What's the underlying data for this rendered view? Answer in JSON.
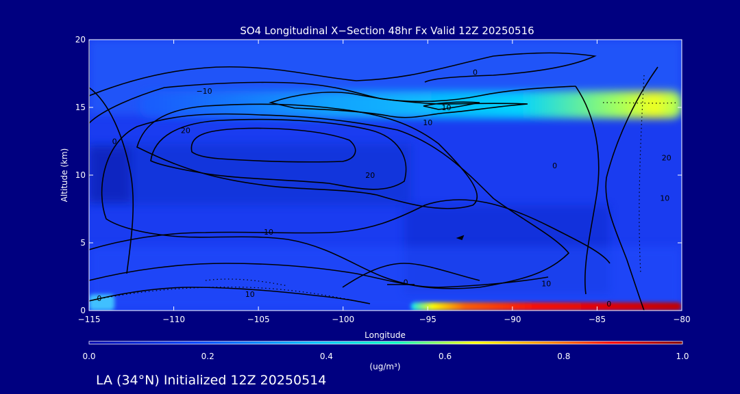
{
  "chart_data": {
    "type": "heatmap",
    "title": "SO4 Longitudinal X−Section 48hr  Fx Valid 12Z 20250516",
    "xlabel": "Longitude",
    "ylabel": "Altitude (km)",
    "xlim": [
      -115,
      -80
    ],
    "ylim": [
      0,
      20
    ],
    "x_ticks": [
      -115,
      -110,
      -105,
      -100,
      -95,
      -90,
      -85,
      -80
    ],
    "x_tick_labels": [
      "−115",
      "−110",
      "−105",
      "−100",
      "−95",
      "−90",
      "−85",
      "−80"
    ],
    "y_ticks": [
      0,
      5,
      10,
      15,
      20
    ],
    "y_tick_labels": [
      "0",
      "5",
      "10",
      "15",
      "20"
    ],
    "colorbar": {
      "label": "(ug/m³)",
      "range": [
        0.0,
        1.0
      ],
      "ticks": [
        0.0,
        0.2,
        0.4,
        0.6,
        0.8,
        1.0
      ],
      "tick_labels": [
        "0.0",
        "0.2",
        "0.4",
        "0.6",
        "0.8",
        "1.0"
      ],
      "colors": [
        "#0000aa",
        "#0040ff",
        "#00c0ff",
        "#00ffc0",
        "#ffff00",
        "#ff8000",
        "#ff0000",
        "#800000"
      ]
    },
    "shaded_features": [
      {
        "name": "upper-layer",
        "lon_range": [
          -112,
          -80
        ],
        "alt_range": [
          14.2,
          16.2
        ],
        "peak_lon": -84,
        "peak_value": 0.6
      },
      {
        "name": "surface-layer",
        "lon_range": [
          -96,
          -80
        ],
        "alt_range": [
          0,
          0.6
        ],
        "peak_lon": -82,
        "peak_value": 1.0
      },
      {
        "name": "west-surface-plume",
        "lon_range": [
          -115,
          -113.5
        ],
        "alt_range": [
          0,
          1.2
        ],
        "peak_lon": -114.5,
        "peak_value": 0.45
      }
    ],
    "contour_labels": [
      {
        "text": "0",
        "lon": -113.5,
        "alt": 12.5
      },
      {
        "text": "0",
        "lon": -92.2,
        "alt": 17.6
      },
      {
        "text": "0",
        "lon": -87.5,
        "alt": 10.7
      },
      {
        "text": "0",
        "lon": -114.4,
        "alt": 0.9
      },
      {
        "text": "0",
        "lon": -84.3,
        "alt": 0.5
      },
      {
        "text": "0",
        "lon": -96.3,
        "alt": 2.1
      },
      {
        "text": "−10",
        "lon": -108.2,
        "alt": 16.2
      },
      {
        "text": "10",
        "lon": -93.9,
        "alt": 15.0
      },
      {
        "text": "10",
        "lon": -95.0,
        "alt": 13.9
      },
      {
        "text": "10",
        "lon": -104.4,
        "alt": 5.8
      },
      {
        "text": "10",
        "lon": -81.0,
        "alt": 8.3
      },
      {
        "text": "10",
        "lon": -105.5,
        "alt": 1.2
      },
      {
        "text": "10",
        "lon": -88.0,
        "alt": 2.0
      },
      {
        "text": "20",
        "lon": -109.3,
        "alt": 13.3
      },
      {
        "text": "20",
        "lon": -80.9,
        "alt": 11.3
      },
      {
        "text": "20",
        "lon": -98.4,
        "alt": 10.0
      }
    ]
  },
  "footer": {
    "location_text": "LA (34°N) Initialized 12Z 20250514"
  }
}
